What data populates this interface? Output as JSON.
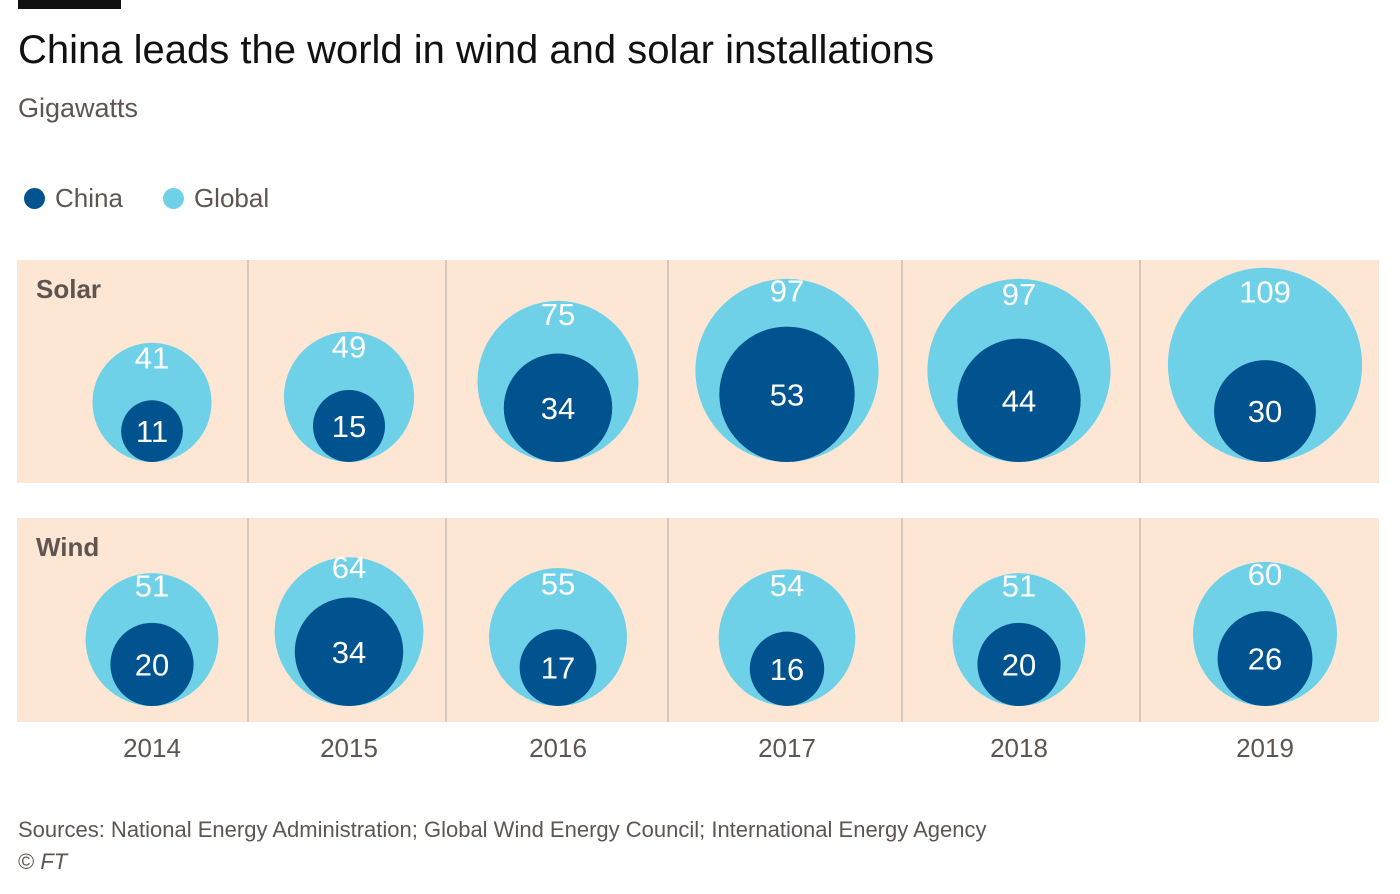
{
  "header": {
    "title": "China leads the world in wind and solar installations",
    "subtitle": "Gigawatts"
  },
  "colors": {
    "china": "#00538f",
    "global": "#6fd1e8",
    "panel": "#fde6d4",
    "divider": "#d6c7ba",
    "text": "#5f5550"
  },
  "legend": {
    "china_label": "China",
    "global_label": "Global"
  },
  "chart_data": {
    "type": "bubble",
    "categories": [
      "2014",
      "2015",
      "2016",
      "2017",
      "2018",
      "2019"
    ],
    "units": "Gigawatts",
    "panels": [
      {
        "label": "Solar",
        "series": [
          {
            "name": "Global",
            "values": [
              41,
              49,
              75,
              97,
              97,
              109
            ]
          },
          {
            "name": "China",
            "values": [
              11,
              15,
              34,
              53,
              44,
              30
            ]
          }
        ]
      },
      {
        "label": "Wind",
        "series": [
          {
            "name": "Global",
            "values": [
              51,
              64,
              55,
              54,
              51,
              60
            ]
          },
          {
            "name": "China",
            "values": [
              20,
              34,
              17,
              16,
              20,
              26
            ]
          }
        ]
      }
    ],
    "legend_position": "top-left"
  },
  "footer": {
    "source": "Sources: National Energy Administration; Global Wind Energy Council; International Energy Agency",
    "copyright_symbol": "©",
    "copyright_name": "FT"
  }
}
